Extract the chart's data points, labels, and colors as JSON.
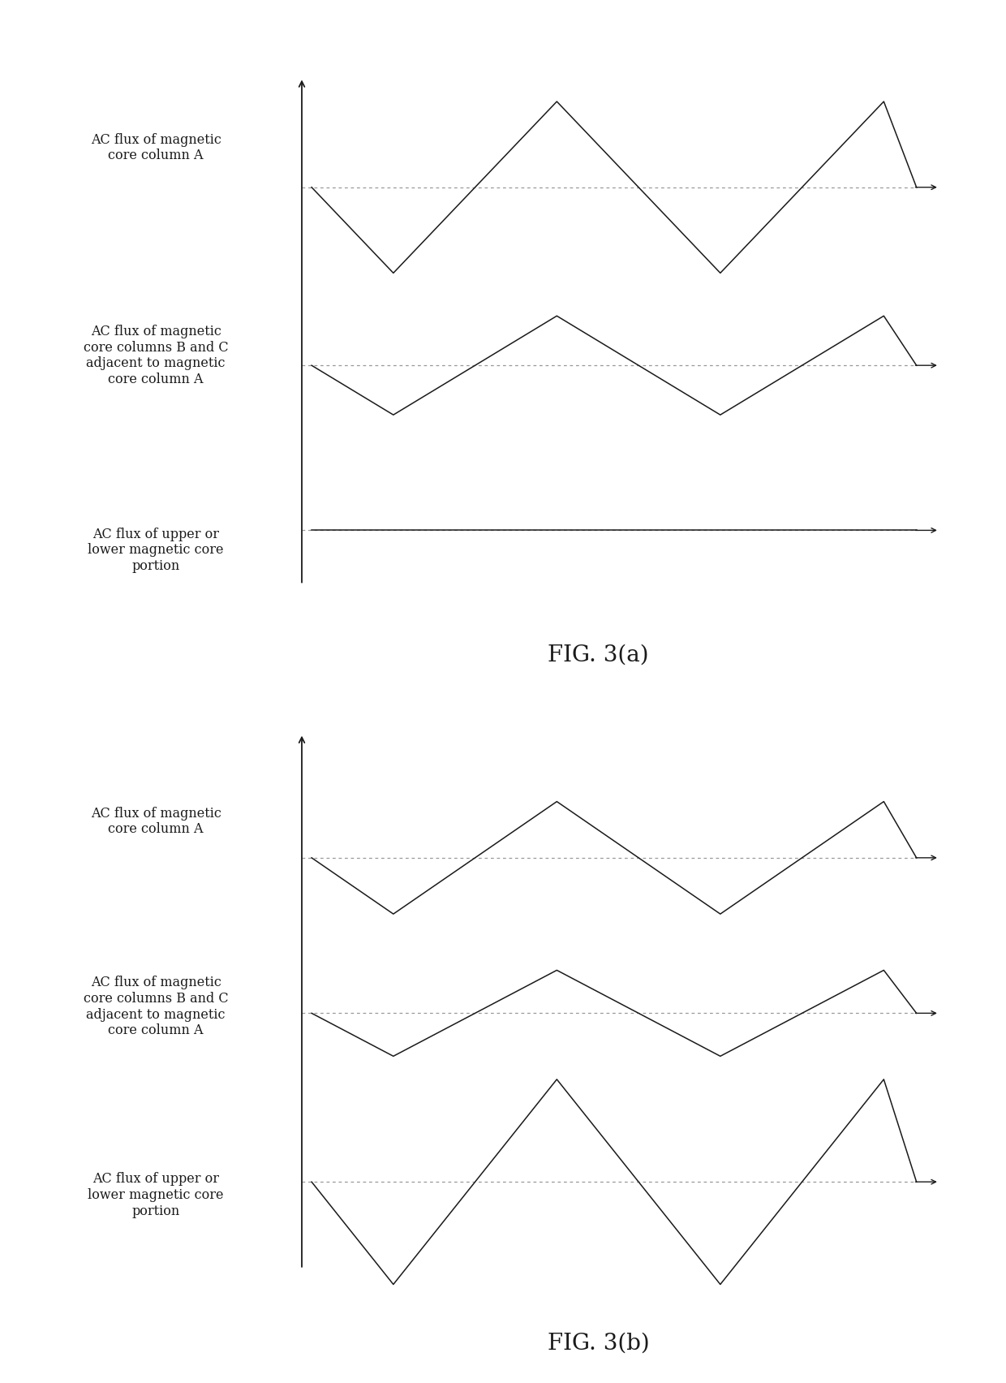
{
  "fig_a_title": "FIG. 3(a)",
  "fig_b_title": "FIG. 3(b)",
  "label_A": "AC flux of magnetic\ncore column A",
  "label_BC": "AC flux of magnetic\ncore columns B and C\nadjacent to magnetic\ncore column A",
  "label_UL_a": "AC flux of upper or\nlower magnetic core\nportion",
  "label_UL_b": "AC flux of upper or\nlower magnetic core\nportion",
  "bg_color": "#ffffff",
  "line_color": "#1a1a1a",
  "dash_color": "#999999",
  "font_size": 11.5,
  "title_font_size": 20
}
